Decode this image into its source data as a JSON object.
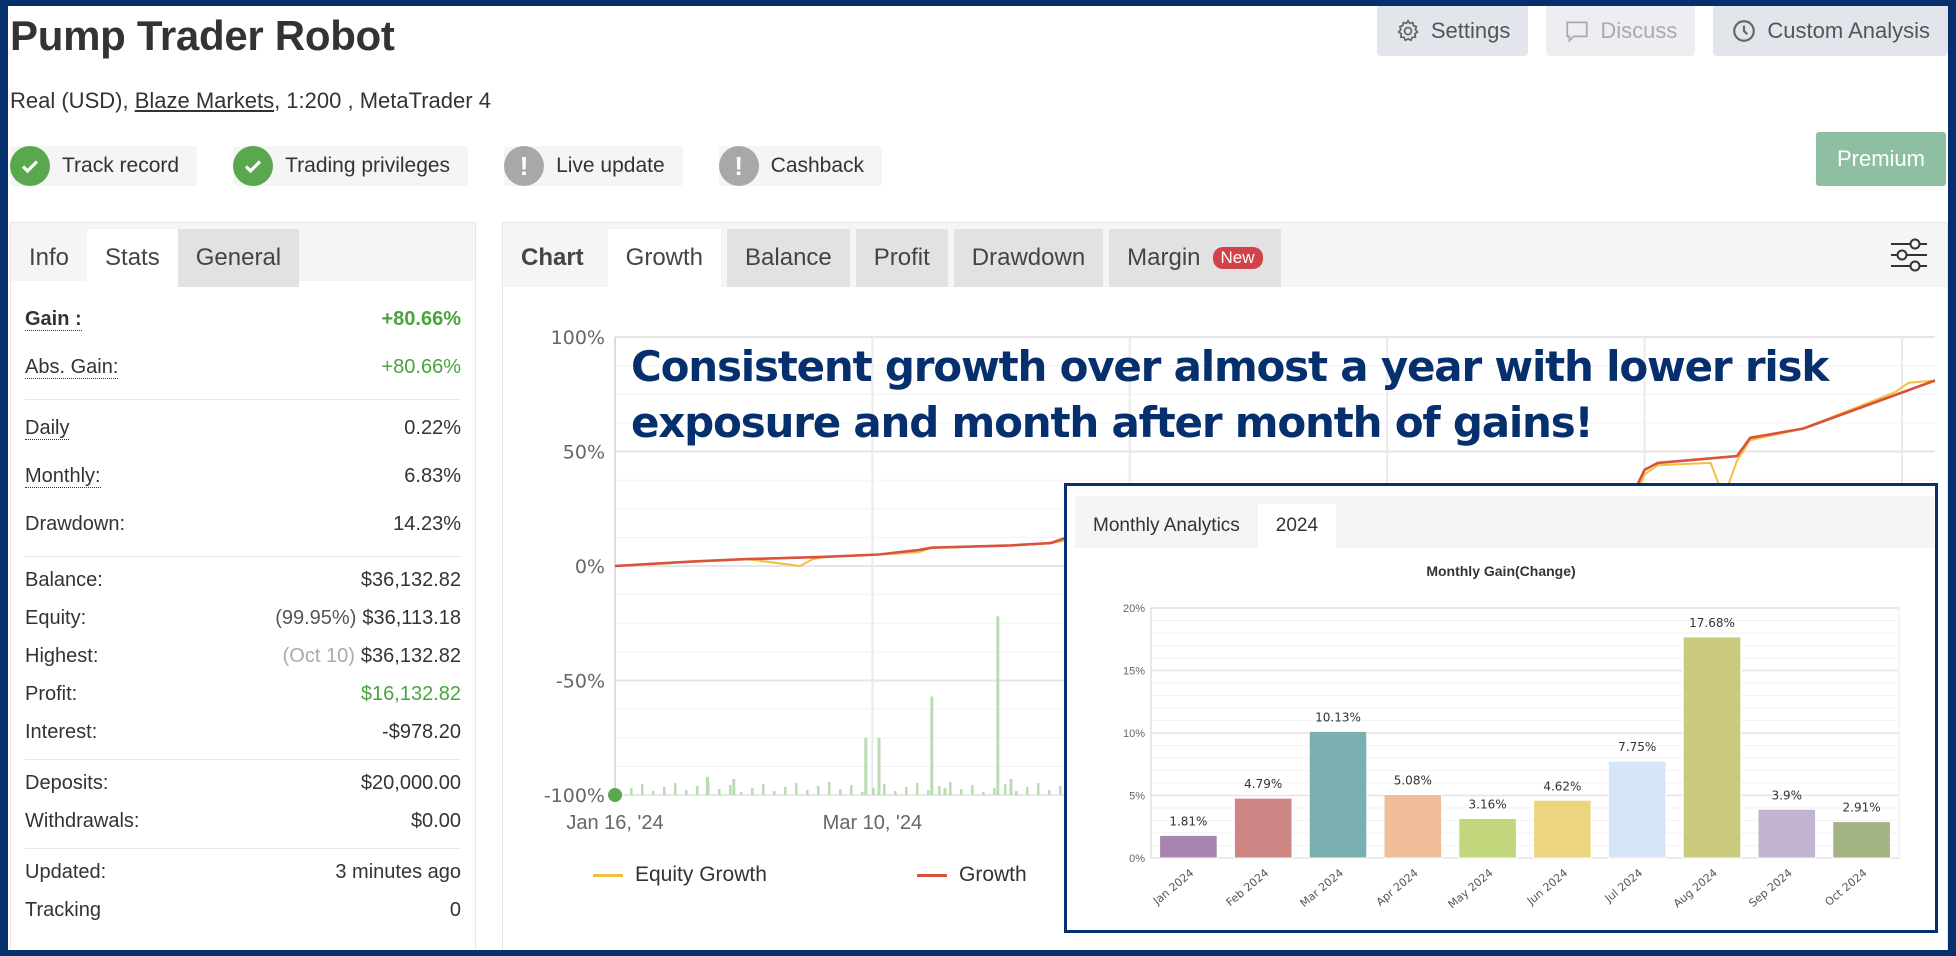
{
  "header": {
    "title": "Pump Trader Robot",
    "account_type": "Real (USD), ",
    "broker": "Blaze Markets",
    "details": ", 1:200 , MetaTrader 4",
    "buttons": [
      {
        "label": "Settings",
        "icon": "gear-icon",
        "disabled": false
      },
      {
        "label": "Discuss",
        "icon": "chat-icon",
        "disabled": true
      },
      {
        "label": "Custom Analysis",
        "icon": "clock-icon",
        "disabled": false
      }
    ],
    "premium_label": "Premium"
  },
  "badges": [
    {
      "label": "Track record",
      "status": "verified"
    },
    {
      "label": "Trading privileges",
      "status": "verified"
    },
    {
      "label": "Live update",
      "status": "warning"
    },
    {
      "label": "Cashback",
      "status": "warning"
    }
  ],
  "stats_panel": {
    "tabs": [
      "Info",
      "Stats",
      "General"
    ],
    "active_tab": "Stats",
    "groups": [
      [
        {
          "label": "Gain :",
          "value": "+80.66%",
          "color": "green",
          "bold": true,
          "dotted": true
        },
        {
          "label": "Abs. Gain:",
          "value": "+80.66%",
          "color": "green",
          "dotted": true
        }
      ],
      [
        {
          "label": "Daily",
          "value": "0.22%",
          "dotted": true
        },
        {
          "label": "Monthly:",
          "value": "6.83%",
          "dotted": true
        },
        {
          "label": "Drawdown:",
          "value": "14.23%"
        }
      ],
      [
        {
          "label": "Balance:",
          "value": "$36,132.82"
        },
        {
          "label": "Equity:",
          "prefix": "(99.95%)",
          "value": "$36,113.18"
        },
        {
          "label": "Highest:",
          "prefix": "(Oct 10)",
          "prefix_light": true,
          "value": "$36,132.82"
        },
        {
          "label": "Profit:",
          "value": "$16,132.82",
          "color": "green"
        },
        {
          "label": "Interest:",
          "value": "-$978.20"
        }
      ],
      [
        {
          "label": "Deposits:",
          "value": "$20,000.00"
        },
        {
          "label": "Withdrawals:",
          "value": "$0.00"
        }
      ],
      [
        {
          "label": "Updated:",
          "value": "3 minutes ago"
        },
        {
          "label": "Tracking",
          "value": "0"
        }
      ]
    ]
  },
  "chart_panel": {
    "tabs": [
      {
        "label": "Chart",
        "style": "plain"
      },
      {
        "label": "Growth",
        "style": "active"
      },
      {
        "label": "Balance",
        "style": "gray"
      },
      {
        "label": "Profit",
        "style": "gray"
      },
      {
        "label": "Drawdown",
        "style": "gray"
      },
      {
        "label": "Margin",
        "style": "gray",
        "badge": "New"
      }
    ],
    "headline_line1": "Consistent growth over almost a year with lower risk",
    "headline_line2": "exposure and month after month of gains!",
    "legend": [
      {
        "label": "Equity Growth",
        "color": "#f0c040"
      },
      {
        "label": "Growth",
        "color": "#d9533b"
      }
    ]
  },
  "inset": {
    "tabs": [
      "Monthly Analytics",
      "2024"
    ],
    "active_tab": "2024"
  },
  "chart_data": [
    {
      "type": "line",
      "title": "Growth",
      "xlabel": "",
      "ylabel": "",
      "x_tick_labels": [
        "Jan 16, '24",
        "Mar 10, '24"
      ],
      "y_tick_labels": [
        "100%",
        "50%",
        "0%",
        "-50%",
        "-100%"
      ],
      "ylim": [
        -100,
        100
      ],
      "grid": true,
      "legend_position": "bottom",
      "series": [
        {
          "name": "Growth",
          "color": "#d9533b",
          "x_frac": [
            0,
            0.06,
            0.1,
            0.16,
            0.2,
            0.23,
            0.24,
            0.3,
            0.33,
            0.34,
            0.4,
            0.43,
            0.45,
            0.46,
            0.53,
            0.6,
            0.66,
            0.67,
            0.74,
            0.75,
            0.77,
            0.78,
            0.79,
            0.85,
            0.86,
            0.9,
            1.0
          ],
          "values": [
            0,
            2,
            3,
            4,
            5,
            7,
            8,
            9,
            10,
            12,
            14,
            15,
            18,
            20,
            22,
            22,
            24,
            26,
            27,
            28,
            30,
            42,
            45,
            48,
            56,
            60,
            81
          ]
        },
        {
          "name": "Equity Growth",
          "color": "#f0c040",
          "x_frac": [
            0,
            0.06,
            0.1,
            0.14,
            0.15,
            0.16,
            0.2,
            0.23,
            0.24,
            0.3,
            0.33,
            0.34,
            0.4,
            0.42,
            0.43,
            0.45,
            0.46,
            0.53,
            0.6,
            0.66,
            0.67,
            0.74,
            0.75,
            0.77,
            0.78,
            0.79,
            0.83,
            0.84,
            0.85,
            0.86,
            0.9,
            0.97,
            0.98,
            1.0
          ],
          "values": [
            0,
            2,
            3,
            0,
            3,
            4,
            5,
            6,
            8,
            9,
            10,
            11,
            13,
            10,
            14,
            18,
            19,
            21,
            21,
            23,
            25,
            25,
            27,
            26,
            40,
            44,
            45,
            30,
            46,
            55,
            60,
            76,
            80,
            81
          ]
        },
        {
          "name": "Trades",
          "color": "#b9dcb2",
          "type": "bar",
          "x_frac": [
            0.07,
            0.09,
            0.19,
            0.2,
            0.24,
            0.25,
            0.29,
            0.3,
            0.35,
            0.4,
            0.44,
            0.5,
            0.56,
            0.62,
            0.68,
            0.73,
            0.77,
            0.78,
            0.84,
            0.9,
            0.95
          ],
          "values": [
            -92,
            -93,
            -75,
            -75,
            -57,
            -97,
            -22,
            -93,
            -88,
            -49,
            -86,
            -96,
            -91,
            -90,
            -80,
            -70,
            -38,
            -60,
            -88,
            -92,
            -85
          ]
        }
      ]
    },
    {
      "type": "bar",
      "title": "Monthly Gain(Change)",
      "categories": [
        "Jan 2024",
        "Feb 2024",
        "Mar 2024",
        "Apr 2024",
        "May 2024",
        "Jun 2024",
        "Jul 2024",
        "Aug 2024",
        "Sep 2024",
        "Oct 2024"
      ],
      "values": [
        1.81,
        4.79,
        10.13,
        5.08,
        3.16,
        4.62,
        7.75,
        17.68,
        3.9,
        2.91
      ],
      "data_labels": [
        "1.81%",
        "4.79%",
        "10.13%",
        "5.08%",
        "3.16%",
        "4.62%",
        "7.75%",
        "17.68%",
        "3.9%",
        "2.91%"
      ],
      "colors": [
        "#a884b0",
        "#cd8583",
        "#7ab0b0",
        "#efbd98",
        "#c2d67c",
        "#ecd57e",
        "#d6e6f7",
        "#cbc97b",
        "#c0b4d2",
        "#a3b384"
      ],
      "y_tick_labels": [
        "0%",
        "5%",
        "10%",
        "15%",
        "20%"
      ],
      "ylim": [
        0,
        20
      ],
      "xlabel": "",
      "ylabel": "",
      "grid": true
    }
  ]
}
